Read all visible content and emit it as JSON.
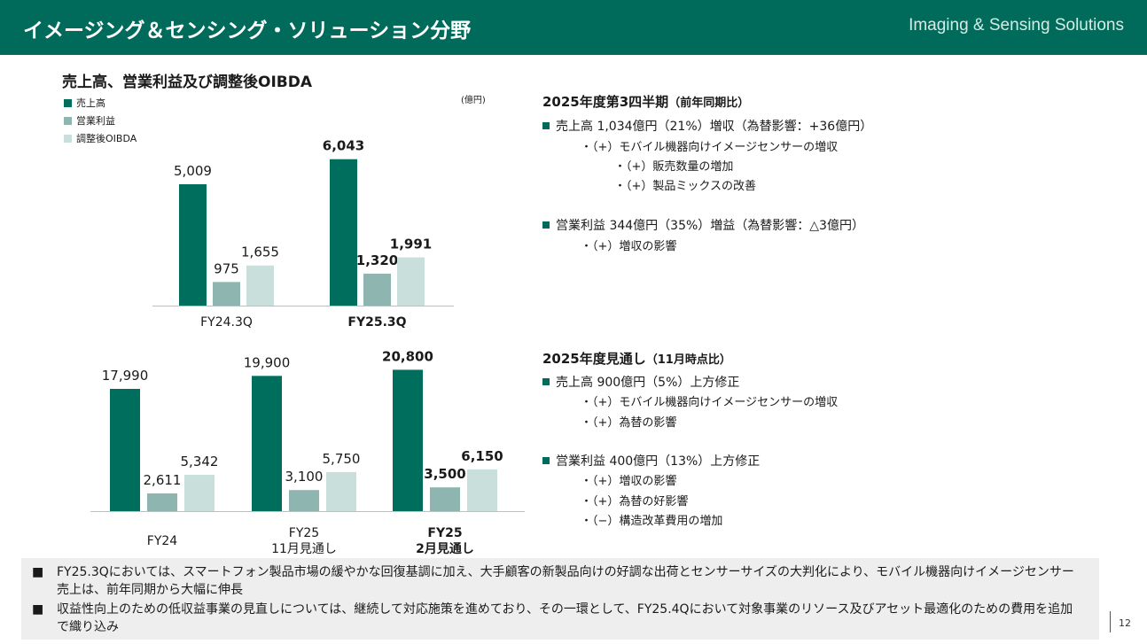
{
  "header": {
    "title": "イメージング＆センシング・ソリューション分野",
    "subtitle": "Imaging & Sensing Solutions"
  },
  "left": {
    "title": "売上高、営業利益及び調整後OIBDA",
    "unit": "(億円)",
    "legend": [
      "売上高",
      "営業利益",
      "調整後OIBDA"
    ]
  },
  "colors": {
    "sales": "#006e5c",
    "op": "#8fb5b0",
    "oibda": "#c8dfdb",
    "header": "#006b5b"
  },
  "chart_data": [
    {
      "type": "bar",
      "title": "",
      "categories": [
        "FY24.3Q",
        "FY25.3Q"
      ],
      "series": [
        {
          "name": "売上高",
          "values": [
            5009,
            6043
          ]
        },
        {
          "name": "営業利益",
          "values": [
            975,
            1320
          ]
        },
        {
          "name": "調整後OIBDA",
          "values": [
            1655,
            1991
          ]
        }
      ],
      "labels": [
        [
          "5,009",
          "975",
          "1,655"
        ],
        [
          "6,043",
          "1,320",
          "1,991"
        ]
      ],
      "bold_groups": [
        false,
        true
      ],
      "ylabel": "億円"
    },
    {
      "type": "bar",
      "title": "",
      "categories": [
        "FY24",
        "FY25\n11月見通し",
        "FY25\n2月見通し"
      ],
      "series": [
        {
          "name": "売上高",
          "values": [
            17990,
            19900,
            20800
          ]
        },
        {
          "name": "営業利益",
          "values": [
            2611,
            3100,
            3500
          ]
        },
        {
          "name": "調整後OIBDA",
          "values": [
            5342,
            5750,
            6150
          ]
        }
      ],
      "labels": [
        [
          "17,990",
          "2,611",
          "5,342"
        ],
        [
          "19,900",
          "3,100",
          "5,750"
        ],
        [
          "20,800",
          "3,500",
          "6,150"
        ]
      ],
      "bold_groups": [
        false,
        false,
        true
      ],
      "ylabel": "億円"
    }
  ],
  "right": {
    "q3": {
      "title": "2025年度第3四半期",
      "title_paren": "（前年同期比）",
      "sales": "売上高  1,034億円（21%）増収（為替影響：+36億円）",
      "sales_subs": [
        "・（+）モバイル機器向けイメージセンサーの増収",
        "・（+）販売数量の増加",
        "・（+）製品ミックスの改善"
      ],
      "op": "営業利益  344億円（35%）増益（為替影響：△3億円）",
      "op_subs": [
        "・（+）増収の影響"
      ]
    },
    "fy": {
      "title": "2025年度見通し",
      "title_paren": "（11月時点比）",
      "sales": "売上高  900億円（5%）上方修正",
      "sales_subs": [
        "・（+）モバイル機器向けイメージセンサーの増収",
        "・（+）為替の影響"
      ],
      "op": "営業利益  400億円（13%）上方修正",
      "op_subs": [
        "・（+）増収の影響",
        "・（+）為替の好影響",
        "・（−）構造改革費用の増加"
      ]
    }
  },
  "footer": {
    "mark": "■",
    "lines": [
      "FY25.3Qにおいては、スマートフォン製品市場の緩やかな回復基調に加え、大手顧客の新製品向けの好調な出荷とセンサーサイズの大判化により、モバイル機器向けイメージセンサー売上は、前年同期から大幅に伸長",
      "収益性向上のための低収益事業の見直しについては、継続して対応施策を進めており、その一環として、FY25.4Qにおいて対象事業のリソース及びアセット最適化のための費用を追加で織り込み"
    ]
  },
  "page_number": "12"
}
